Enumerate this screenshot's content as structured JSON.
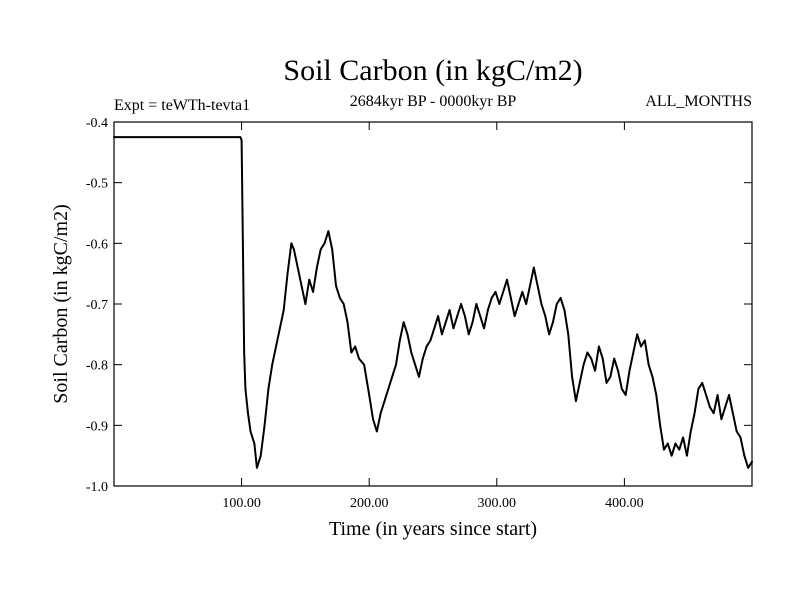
{
  "chart_data": {
    "type": "line",
    "title": "Soil Carbon (in kgC/m2)",
    "subtitle_left": "Expt = teWTh-tevta1",
    "subtitle_center": "2684kyr BP - 0000kyr BP",
    "subtitle_right": "ALL_MONTHS",
    "xlabel": "Time (in years since start)",
    "ylabel": "Soil Carbon (in kgC/m2)",
    "xlim": [
      0,
      500
    ],
    "ylim": [
      -1.0,
      -0.4
    ],
    "x_ticks": [
      100,
      200,
      300,
      400
    ],
    "x_tick_labels": [
      "100.00",
      "200.00",
      "300.00",
      "400.00"
    ],
    "y_ticks": [
      -1.0,
      -0.9,
      -0.8,
      -0.7,
      -0.6,
      -0.5,
      -0.4
    ],
    "y_tick_labels": [
      "-1.0",
      "-0.9",
      "-0.8",
      "-0.7",
      "-0.6",
      "-0.5",
      "-0.4"
    ],
    "grid": false,
    "line_color": "#000000",
    "series": [
      {
        "x": [
          0,
          99,
          100,
          101,
          102,
          103,
          105,
          107,
          110,
          112,
          115,
          118,
          121,
          124,
          127,
          130,
          133,
          136,
          139,
          141,
          144,
          147,
          150,
          153,
          156,
          159,
          162,
          165,
          168,
          171,
          174,
          177,
          180,
          183,
          186,
          189,
          192,
          196,
          200,
          203,
          206,
          209,
          212,
          215,
          218,
          221,
          224,
          227,
          230,
          233,
          236,
          239,
          242,
          245,
          248,
          251,
          254,
          257,
          260,
          263,
          266,
          269,
          272,
          275,
          278,
          281,
          284,
          287,
          290,
          293,
          296,
          299,
          302,
          305,
          308,
          311,
          314,
          317,
          320,
          323,
          326,
          329,
          332,
          335,
          338,
          341,
          344,
          347,
          350,
          353,
          356,
          359,
          362,
          365,
          368,
          371,
          374,
          377,
          380,
          383,
          386,
          389,
          392,
          395,
          398,
          401,
          404,
          407,
          410,
          413,
          416,
          419,
          422,
          425,
          428,
          431,
          434,
          437,
          440,
          443,
          446,
          449,
          452,
          455,
          458,
          461,
          464,
          467,
          470,
          473,
          476,
          479,
          482,
          485,
          488,
          491,
          494,
          497,
          500
        ],
        "y": [
          -0.425,
          -0.425,
          -0.43,
          -0.6,
          -0.78,
          -0.84,
          -0.88,
          -0.91,
          -0.93,
          -0.97,
          -0.95,
          -0.9,
          -0.84,
          -0.8,
          -0.77,
          -0.74,
          -0.71,
          -0.65,
          -0.6,
          -0.61,
          -0.64,
          -0.67,
          -0.7,
          -0.66,
          -0.68,
          -0.64,
          -0.61,
          -0.6,
          -0.58,
          -0.61,
          -0.67,
          -0.69,
          -0.7,
          -0.73,
          -0.78,
          -0.77,
          -0.79,
          -0.8,
          -0.85,
          -0.89,
          -0.91,
          -0.88,
          -0.86,
          -0.84,
          -0.82,
          -0.8,
          -0.76,
          -0.73,
          -0.75,
          -0.78,
          -0.8,
          -0.82,
          -0.79,
          -0.77,
          -0.76,
          -0.74,
          -0.72,
          -0.75,
          -0.73,
          -0.71,
          -0.74,
          -0.72,
          -0.7,
          -0.72,
          -0.75,
          -0.73,
          -0.7,
          -0.72,
          -0.74,
          -0.71,
          -0.69,
          -0.68,
          -0.7,
          -0.68,
          -0.66,
          -0.69,
          -0.72,
          -0.7,
          -0.68,
          -0.7,
          -0.67,
          -0.64,
          -0.67,
          -0.7,
          -0.72,
          -0.75,
          -0.73,
          -0.7,
          -0.69,
          -0.71,
          -0.75,
          -0.82,
          -0.86,
          -0.83,
          -0.8,
          -0.78,
          -0.79,
          -0.81,
          -0.77,
          -0.79,
          -0.83,
          -0.82,
          -0.79,
          -0.81,
          -0.84,
          -0.85,
          -0.81,
          -0.78,
          -0.75,
          -0.77,
          -0.76,
          -0.8,
          -0.82,
          -0.85,
          -0.9,
          -0.94,
          -0.93,
          -0.95,
          -0.93,
          -0.94,
          -0.92,
          -0.95,
          -0.91,
          -0.88,
          -0.84,
          -0.83,
          -0.85,
          -0.87,
          -0.88,
          -0.85,
          -0.89,
          -0.87,
          -0.85,
          -0.88,
          -0.91,
          -0.92,
          -0.95,
          -0.97,
          -0.96
        ]
      }
    ]
  }
}
